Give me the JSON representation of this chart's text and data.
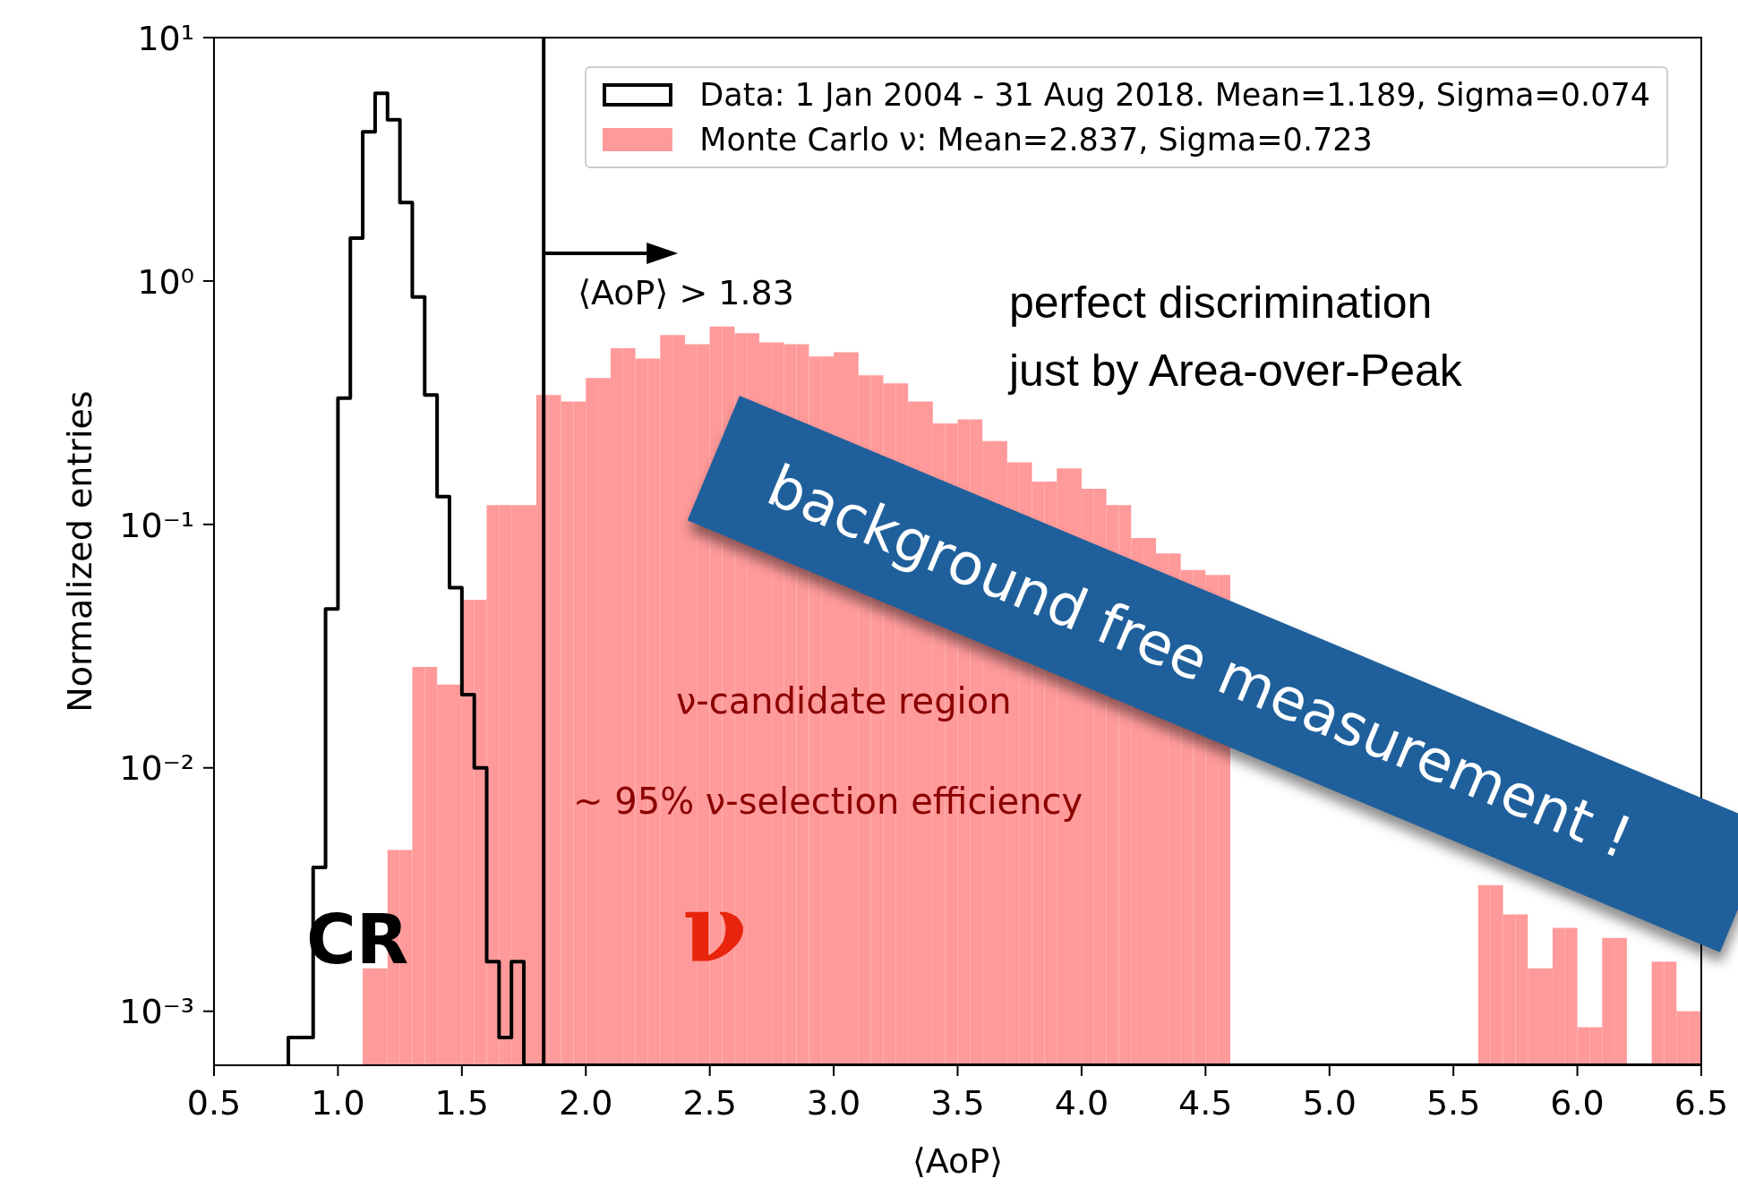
{
  "chart_data": {
    "type": "histogram",
    "xlabel": "⟨AoP⟩",
    "ylabel": "Normalized entries",
    "log": "y",
    "xlim": [
      0.5,
      6.5
    ],
    "xticks": [
      {
        "value": 0.5,
        "label": "0.5"
      },
      {
        "value": 1,
        "label": "1.0"
      },
      {
        "value": 1.5,
        "label": "1.5"
      },
      {
        "value": 2,
        "label": "2.0"
      },
      {
        "value": 2.5,
        "label": "2.5"
      },
      {
        "value": 3,
        "label": "3.0"
      },
      {
        "value": 3.5,
        "label": "3.5"
      },
      {
        "value": 4,
        "label": "4.0"
      },
      {
        "value": 4.5,
        "label": "4.5"
      },
      {
        "value": 5,
        "label": "5.0"
      },
      {
        "value": 5.5,
        "label": "5.5"
      },
      {
        "value": 6,
        "label": "6.0"
      },
      {
        "value": 6.5,
        "label": "6.5"
      }
    ],
    "ylim": [
      0.0006,
      10
    ],
    "yticks": [
      {
        "value": 0.001,
        "label": "10⁻³"
      },
      {
        "value": 0.01,
        "label": "10⁻²"
      },
      {
        "value": 0.1,
        "label": "10⁻¹"
      },
      {
        "value": 1,
        "label": "10⁰"
      },
      {
        "value": 10,
        "label": "10¹"
      }
    ],
    "legend": "top right",
    "bins": [
      0.8,
      0.85,
      0.9,
      0.95,
      1.0,
      1.05,
      1.1,
      1.15,
      1.2,
      1.25,
      1.3,
      1.35,
      1.4,
      1.45,
      1.5,
      1.55,
      1.6,
      1.65,
      1.7,
      1.75,
      1.8,
      1.85,
      1.9,
      1.95,
      2.0,
      2.05,
      2.1,
      2.15,
      2.2,
      2.25,
      2.3,
      2.35,
      2.4,
      2.45,
      2.5,
      2.55,
      2.6,
      2.65,
      2.7,
      2.75,
      2.8,
      2.85,
      2.9,
      2.95,
      3.0,
      3.05,
      3.1,
      3.15,
      3.2,
      3.25,
      3.3,
      3.35,
      3.4,
      3.45,
      3.5,
      3.55,
      3.6,
      3.65,
      3.7,
      3.75,
      3.8,
      3.85,
      3.9,
      3.95,
      4.0,
      4.05,
      4.1,
      4.15,
      4.2,
      4.25,
      4.3,
      4.35,
      4.4,
      4.45,
      4.5,
      4.55,
      4.6,
      4.65,
      4.7,
      4.75,
      4.8,
      4.85,
      4.9,
      4.95,
      5.0,
      5.05,
      5.1,
      5.15,
      5.2,
      5.25,
      5.3,
      5.35,
      5.4,
      5.45,
      5.5,
      5.55,
      5.6,
      5.65,
      5.7,
      5.75,
      5.8,
      5.85,
      5.9,
      5.95,
      6.0,
      6.05,
      6.1,
      6.15,
      6.2,
      6.25,
      6.3,
      6.35,
      6.4,
      6.45,
      6.5
    ],
    "series": [
      {
        "name": "Monte Carlo ν: Mean=2.837, Sigma=0.723",
        "color": "#ff9a9a",
        "values": [
          null,
          null,
          null,
          null,
          null,
          null,
          0.0015,
          0.0015,
          0.0046,
          0.0046,
          0.026,
          0.026,
          0.022,
          0.022,
          0.049,
          0.049,
          0.12,
          0.12,
          0.12,
          0.12,
          0.34,
          0.34,
          0.32,
          0.32,
          0.4,
          0.4,
          0.53,
          0.53,
          0.48,
          0.48,
          0.6,
          0.6,
          0.55,
          0.55,
          0.65,
          0.65,
          0.61,
          0.61,
          0.56,
          0.56,
          0.55,
          0.55,
          0.49,
          0.49,
          0.51,
          0.51,
          0.41,
          0.41,
          0.38,
          0.38,
          0.32,
          0.32,
          0.26,
          0.26,
          0.27,
          0.27,
          0.22,
          0.22,
          0.18,
          0.18,
          0.15,
          0.15,
          0.17,
          0.17,
          0.14,
          0.14,
          0.12,
          0.12,
          0.088,
          0.088,
          0.076,
          0.076,
          0.065,
          0.065,
          0.062,
          0.062,
          null,
          null,
          null,
          null,
          null,
          null,
          null,
          null,
          null,
          null,
          null,
          null,
          null,
          null,
          null,
          null,
          null,
          null,
          null,
          null,
          0.0033,
          0.0033,
          0.0025,
          0.0025,
          0.0015,
          0.0015,
          0.0022,
          0.0022,
          0.00086,
          0.00086,
          0.002,
          0.002,
          null,
          null,
          0.0016,
          0.0016,
          0.001,
          0.001
        ]
      },
      {
        "name": "Data: 1 Jan 2004 - 31 Aug 2018. Mean=1.189, Sigma=0.074",
        "color": "#000000",
        "line_style": "solid",
        "values": [
          0.00078,
          0.00078,
          0.0039,
          0.045,
          0.33,
          1.5,
          4.1,
          5.9,
          4.6,
          2.1,
          0.86,
          0.34,
          0.13,
          0.055,
          0.02,
          0.01,
          0.0016,
          0.00078,
          0.0016,
          null,
          null,
          null,
          null,
          null,
          null,
          null,
          null,
          null,
          null,
          null,
          null,
          null,
          null,
          null,
          null,
          null,
          null,
          null,
          null,
          null,
          null,
          null,
          null,
          null,
          null,
          null,
          null,
          null,
          null,
          null,
          null,
          null,
          null,
          null,
          null,
          null,
          null,
          null,
          null,
          null,
          null,
          null,
          null,
          null,
          null,
          null,
          null,
          null,
          null,
          null,
          null,
          null,
          null,
          null,
          null,
          null,
          null,
          null,
          null,
          null,
          null,
          null,
          null,
          null,
          null,
          null,
          null,
          null,
          null,
          null,
          null,
          null,
          null,
          null,
          null,
          null,
          null,
          null,
          null,
          null,
          null,
          null,
          null,
          null,
          null,
          null,
          null,
          null,
          null,
          null,
          null,
          null,
          null,
          null
        ]
      }
    ],
    "ref_lines": [
      {
        "axis": "x",
        "value": 1.83,
        "label": "⟨AoP⟩ > 1.83",
        "color": "#000000"
      }
    ],
    "annotations": [
      "perfect discrimination\njust by Area-over-Peak",
      "ν-candidate region",
      "~ 95% ν-selection efficiency",
      "CR",
      "ν",
      "background free measurement !"
    ]
  }
}
